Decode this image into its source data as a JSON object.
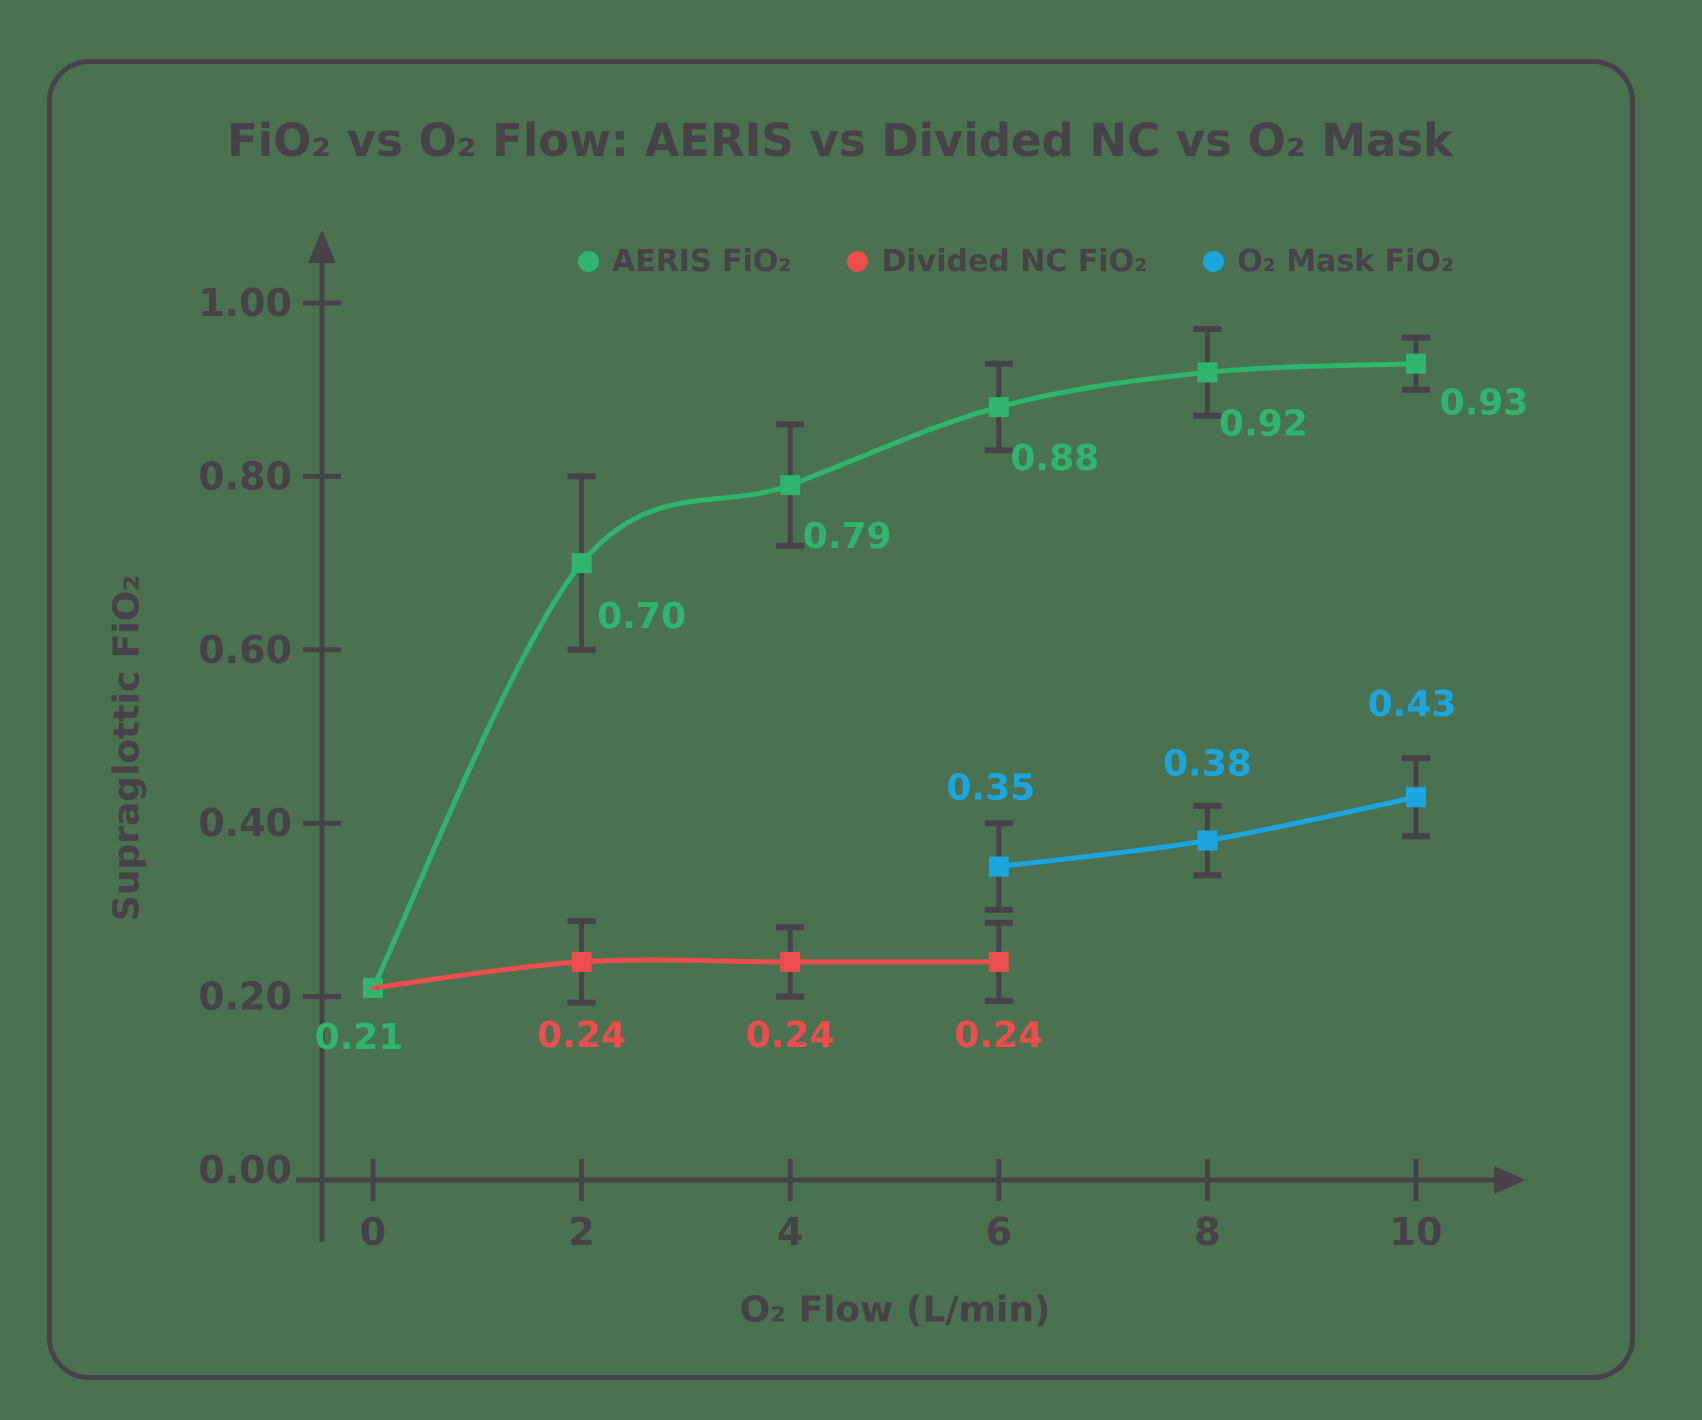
{
  "colors": {
    "background": "#4A7150",
    "ink": "#474247"
  },
  "chart_data": {
    "type": "line",
    "title": "FiO₂ vs O₂ Flow: AERIS vs Divided NC vs O₂ Mask",
    "xlabel": "O₂ Flow (L/min)",
    "ylabel": "Supraglottic FiO₂",
    "grid": false,
    "legend_position": "top",
    "error_bars": true,
    "xlim": [
      0,
      10
    ],
    "ylim": [
      0,
      1.05
    ],
    "x_ticks": [
      {
        "label": "0",
        "value": 0
      },
      {
        "label": "2",
        "value": 2
      },
      {
        "label": "4",
        "value": 4
      },
      {
        "label": "6",
        "value": 6
      },
      {
        "label": "8",
        "value": 8
      },
      {
        "label": "10",
        "value": 10
      }
    ],
    "y_ticks": [
      {
        "label": "1.00",
        "value": 1.0,
        "tick": true
      },
      {
        "label": "0.80",
        "value": 0.8,
        "tick": true
      },
      {
        "label": "0.60",
        "value": 0.6,
        "tick": true
      },
      {
        "label": "0.40",
        "value": 0.4,
        "tick": true
      },
      {
        "label": "0.20",
        "value": 0.2,
        "tick": true
      },
      {
        "label": "0.00",
        "value": 0.0,
        "tick": false
      }
    ],
    "series": [
      {
        "name": "AERIS FiO₂",
        "color": "#2FB56E",
        "x": [
          0,
          2,
          4,
          6,
          8,
          10
        ],
        "y": [
          0.21,
          0.7,
          0.79,
          0.88,
          0.92,
          0.93
        ],
        "err": [
          0,
          0.1,
          0.07,
          0.05,
          0.05,
          0.03
        ],
        "labels": [
          "0.21",
          "0.70",
          "0.79",
          "0.88",
          "0.92",
          "0.93"
        ],
        "label_offsets": [
          [
            -14,
            48
          ],
          [
            60,
            52
          ],
          [
            57,
            50
          ],
          [
            56,
            50
          ],
          [
            56,
            50
          ],
          [
            68,
            38
          ]
        ]
      },
      {
        "name": "Divided NC FiO₂",
        "color": "#EC4D4D",
        "x": [
          0,
          2,
          4,
          6
        ],
        "y": [
          0.21,
          0.24,
          0.24,
          0.24
        ],
        "err": [
          0,
          0.047,
          0.04,
          0.045
        ],
        "labels": [
          "",
          "0.24",
          "0.24",
          "0.24"
        ],
        "label_offsets": [
          [
            0,
            0
          ],
          [
            0,
            72
          ],
          [
            0,
            72
          ],
          [
            0,
            72
          ]
        ]
      },
      {
        "name": "O₂ Mask FiO₂",
        "color": "#1BA6E0",
        "x": [
          6,
          8,
          10
        ],
        "y": [
          0.35,
          0.38,
          0.43
        ],
        "err": [
          0.05,
          0.04,
          0.045
        ],
        "labels": [
          "0.35",
          "0.38",
          "0.43"
        ],
        "label_offsets": [
          [
            -8,
            -80
          ],
          [
            0,
            -78
          ],
          [
            -4,
            -94
          ]
        ]
      }
    ]
  }
}
